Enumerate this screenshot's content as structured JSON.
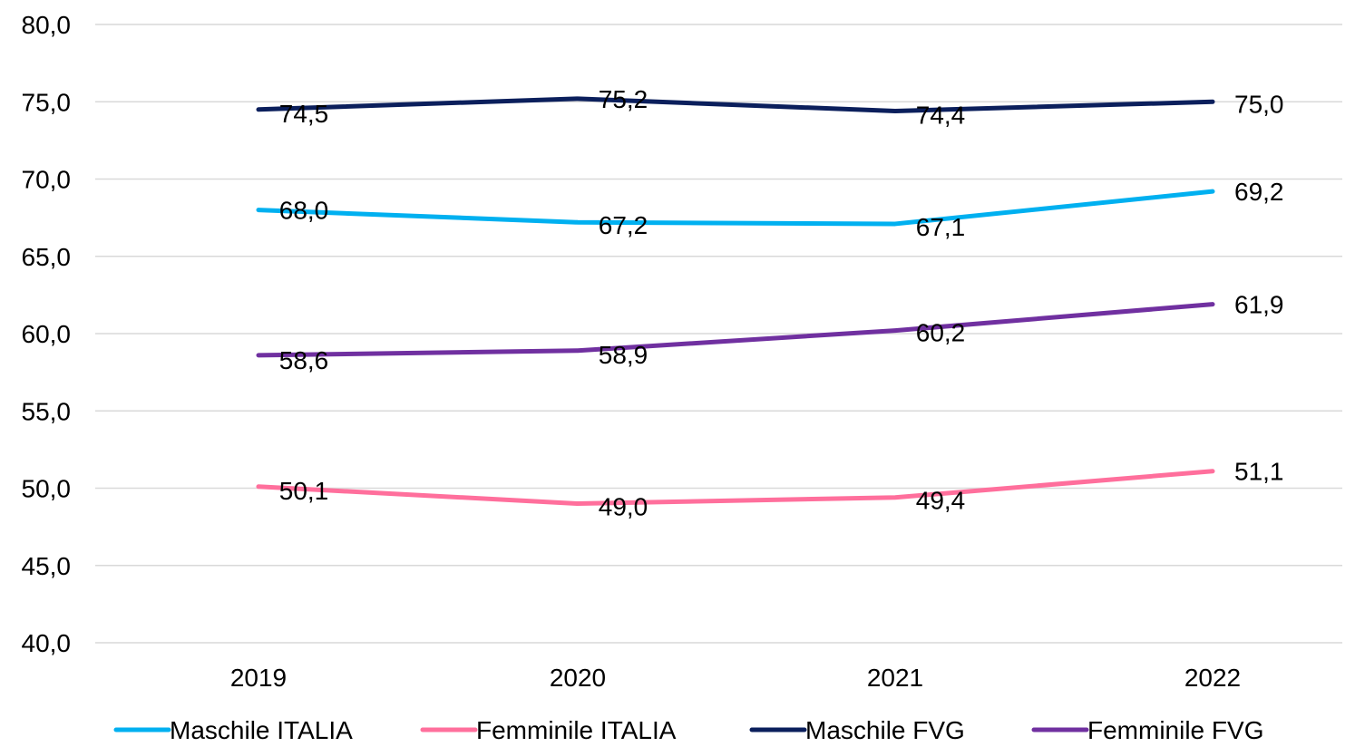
{
  "chart_data": {
    "type": "line",
    "title": "",
    "xlabel": "",
    "ylabel": "",
    "categories": [
      "2019",
      "2020",
      "2021",
      "2022"
    ],
    "ylim": [
      40,
      80
    ],
    "yticks": [
      80,
      75,
      70,
      65,
      60,
      55,
      50,
      45,
      40
    ],
    "ytick_labels": [
      "80,0",
      "75,0",
      "70,0",
      "65,0",
      "60,0",
      "55,0",
      "50,0",
      "45,0",
      "40,0"
    ],
    "grid": "horizontal",
    "legend_position": "bottom",
    "series": [
      {
        "name": "Maschile ITALIA",
        "color": "#00B0F0",
        "values": [
          68.0,
          67.2,
          67.1,
          69.2
        ],
        "labels": [
          "68,0",
          "67,2",
          "67,1",
          "69,2"
        ]
      },
      {
        "name": "Femminile ITALIA",
        "color": "#FF6F9C",
        "values": [
          50.1,
          49.0,
          49.4,
          51.1
        ],
        "labels": [
          "50,1",
          "49,0",
          "49,4",
          "51,1"
        ]
      },
      {
        "name": "Maschile FVG",
        "color": "#0B1F5C",
        "values": [
          74.5,
          75.2,
          74.4,
          75.0
        ],
        "labels": [
          "74,5",
          "75,2",
          "74,4",
          "75,0"
        ]
      },
      {
        "name": "Femminile FVG",
        "color": "#7030A0",
        "values": [
          58.6,
          58.9,
          60.2,
          61.9
        ],
        "labels": [
          "58,6",
          "58,9",
          "60,2",
          "61,9"
        ]
      }
    ]
  }
}
